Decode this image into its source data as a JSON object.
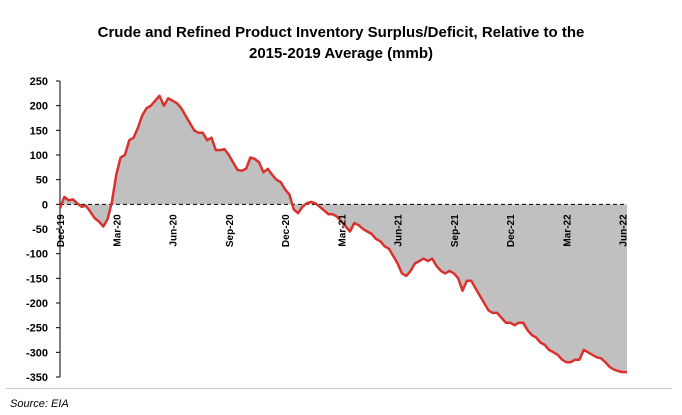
{
  "chart_data": {
    "type": "area",
    "title": "Crude and Refined Product Inventory Surplus/Deficit, Relative to the",
    "subtitle": "2015-2019 Average (mmb)",
    "xlabel": "",
    "ylabel": "",
    "ylim": [
      -350,
      250
    ],
    "yticks": [
      250,
      200,
      150,
      100,
      50,
      0,
      -50,
      -100,
      -150,
      -200,
      -250,
      -300,
      -350
    ],
    "xticks": [
      "Dec-19",
      "Mar-20",
      "Jun-20",
      "Sep-20",
      "Dec-20",
      "Mar-21",
      "Jun-21",
      "Sep-21",
      "Dec-21",
      "Mar-22",
      "Jun-22"
    ],
    "grid": false,
    "legend": "none",
    "x_unit": "weeks from Dec-19",
    "x": [
      0,
      1,
      2,
      3,
      4,
      5,
      6,
      7,
      8,
      9,
      10,
      11,
      12,
      13,
      14,
      15,
      16,
      17,
      18,
      19,
      20,
      21,
      22,
      23,
      24,
      25,
      26,
      27,
      28,
      29,
      30,
      31,
      32,
      33,
      34,
      35,
      36,
      37,
      38,
      39,
      40,
      41,
      42,
      43,
      44,
      45,
      46,
      47,
      48,
      49,
      50,
      51,
      52,
      53,
      54,
      55,
      56,
      57,
      58,
      59,
      60,
      61,
      62,
      63,
      64,
      65,
      66,
      67,
      68,
      69,
      70,
      71,
      72,
      73,
      74,
      75,
      76,
      77,
      78,
      79,
      80,
      81,
      82,
      83,
      84,
      85,
      86,
      87,
      88,
      89,
      90,
      91,
      92,
      93,
      94,
      95,
      96,
      97,
      98,
      99,
      100,
      101,
      102,
      103,
      104,
      105,
      106,
      107,
      108,
      109,
      110,
      111,
      112,
      113,
      114,
      115,
      116,
      117,
      118,
      119,
      120,
      121,
      122,
      123,
      124,
      125,
      126,
      127,
      128,
      129,
      130,
      131
    ],
    "values": [
      -8,
      15,
      8,
      10,
      2,
      -5,
      -3,
      -15,
      -28,
      -35,
      -45,
      -30,
      5,
      60,
      95,
      100,
      130,
      135,
      155,
      180,
      195,
      200,
      210,
      220,
      200,
      215,
      210,
      205,
      195,
      180,
      165,
      150,
      145,
      145,
      130,
      135,
      110,
      110,
      112,
      100,
      85,
      70,
      68,
      72,
      95,
      92,
      85,
      65,
      72,
      60,
      50,
      45,
      30,
      20,
      -10,
      -18,
      -5,
      2,
      5,
      2,
      -5,
      -12,
      -20,
      -20,
      -25,
      -35,
      -45,
      -55,
      -38,
      -42,
      -50,
      -55,
      -60,
      -70,
      -75,
      -85,
      -90,
      -105,
      -120,
      -140,
      -145,
      -135,
      -120,
      -115,
      -110,
      -115,
      -110,
      -125,
      -135,
      -140,
      -135,
      -140,
      -150,
      -175,
      -155,
      -155,
      -170,
      -185,
      -200,
      -215,
      -220,
      -220,
      -230,
      -240,
      -240,
      -245,
      -240,
      -240,
      -255,
      -265,
      -270,
      -280,
      -285,
      -295,
      -300,
      -305,
      -315,
      -320,
      -320,
      -315,
      -315,
      -295,
      -300,
      -305,
      -310,
      -312,
      -320,
      -330,
      -335,
      -338,
      -340,
      -340
    ],
    "line_color": "#d9322e",
    "fill_color": "#c0c0c0"
  },
  "source": "Source: EIA"
}
